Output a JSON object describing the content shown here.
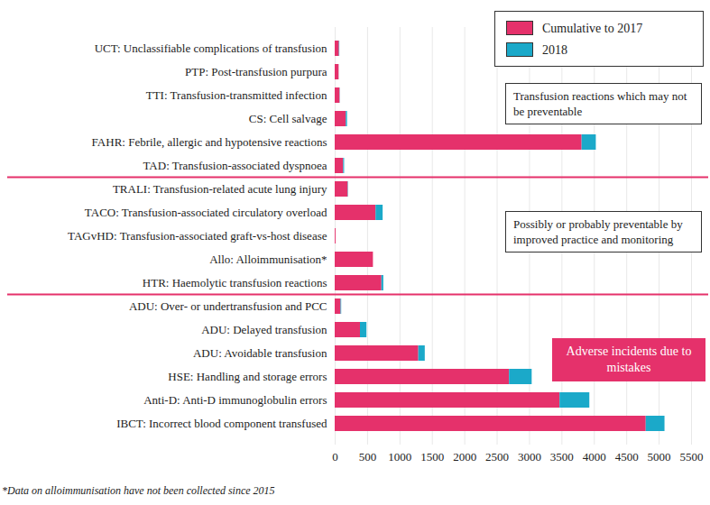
{
  "chart_data": {
    "type": "bar",
    "orientation": "horizontal",
    "stacked": true,
    "categories": [
      "UCT: Unclassifiable complications of transfusion",
      "PTP: Post-transfusion purpura",
      "TTI: Transfusion-transmitted infection",
      "CS: Cell salvage",
      "FAHR: Febrile, allergic and hypotensive reactions",
      "TAD: Transfusion-associated dyspnoea",
      "TRALI: Transfusion-related acute lung injury",
      "TACO: Transfusion-associated circulatory overload",
      "TAGvHD: Transfusion-associated graft-vs-host disease",
      "Allo: Alloimmunisation*",
      "HTR: Haemolytic transfusion reactions",
      "ADU: Over- or undertransfusion and PCC",
      "ADU: Delayed transfusion",
      "ADU: Avoidable transfusion",
      "HSE: Handling and storage errors",
      "Anti-D: Anti-D immunoglobulin errors",
      "IBCT: Incorrect blood component transfused"
    ],
    "series": [
      {
        "name": "Cumulative to 2017",
        "color": "#e5316b",
        "values": [
          65,
          60,
          75,
          170,
          3810,
          130,
          200,
          630,
          13,
          590,
          720,
          90,
          390,
          1290,
          2690,
          3470,
          4800
        ]
      },
      {
        "name": "2018",
        "color": "#1ba9c9",
        "values": [
          6,
          1,
          3,
          20,
          220,
          15,
          5,
          110,
          0,
          0,
          30,
          10,
          100,
          100,
          350,
          460,
          290
        ]
      }
    ],
    "xlim": [
      0,
      5500
    ],
    "xticks": [
      0,
      500,
      1000,
      1500,
      2000,
      2500,
      3000,
      3500,
      4000,
      4500,
      5000,
      5500
    ],
    "grid": true,
    "legend": "top-right",
    "annotations": [
      {
        "text": "Transfusion reactions which may not be preventable"
      },
      {
        "text": "Possibly or probably preventable by improved practice and monitoring"
      },
      {
        "text": "Adverse incidents due to mistakes"
      }
    ],
    "caption": "*Data on alloimmunisation have not been collected since 2015"
  }
}
